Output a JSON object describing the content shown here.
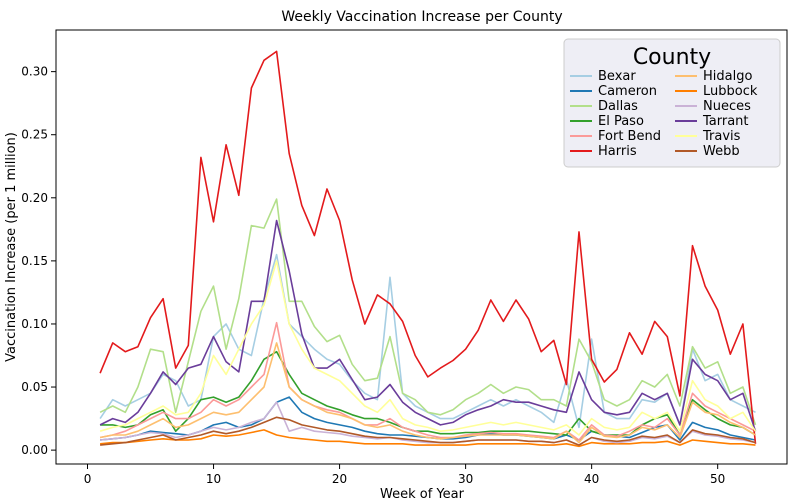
{
  "chart_data": {
    "type": "line",
    "title": "Weekly Vaccination Increase per County",
    "xlabel": "Week of Year",
    "ylabel": "Vaccination Increase (per 1 million)",
    "xlim": [
      -2.5,
      55.5
    ],
    "ylim": [
      -0.011,
      0.333
    ],
    "xticks": [
      0,
      10,
      20,
      30,
      40,
      50
    ],
    "yticks": [
      0.0,
      0.05,
      0.1,
      0.15,
      0.2,
      0.25,
      0.3
    ],
    "xtick_labels": [
      "0",
      "10",
      "20",
      "30",
      "40",
      "50"
    ],
    "ytick_labels": [
      "0.00",
      "0.05",
      "0.10",
      "0.15",
      "0.20",
      "0.25",
      "0.30"
    ],
    "grid": false,
    "legend": {
      "title": "County",
      "placement": "top-right",
      "columns": 2
    },
    "x": [
      1,
      2,
      3,
      4,
      5,
      6,
      7,
      8,
      9,
      10,
      11,
      12,
      13,
      14,
      15,
      16,
      17,
      18,
      19,
      20,
      21,
      22,
      23,
      24,
      25,
      26,
      27,
      28,
      29,
      30,
      31,
      32,
      33,
      34,
      35,
      36,
      37,
      38,
      39,
      40,
      41,
      42,
      43,
      44,
      45,
      46,
      47,
      48,
      49,
      50,
      51,
      52,
      53
    ],
    "series": [
      {
        "name": "Bexar",
        "color": "#a6cee3",
        "values": [
          0.025,
          0.04,
          0.035,
          0.04,
          0.045,
          0.06,
          0.055,
          0.035,
          0.04,
          0.09,
          0.1,
          0.08,
          0.075,
          0.12,
          0.155,
          0.1,
          0.09,
          0.08,
          0.072,
          0.068,
          0.055,
          0.045,
          0.04,
          0.137,
          0.045,
          0.035,
          0.03,
          0.025,
          0.025,
          0.03,
          0.035,
          0.04,
          0.035,
          0.04,
          0.035,
          0.03,
          0.022,
          0.056,
          0.018,
          0.088,
          0.03,
          0.025,
          0.025,
          0.04,
          0.038,
          0.045,
          0.02,
          0.08,
          0.055,
          0.06,
          0.04,
          0.035,
          0.03
        ]
      },
      {
        "name": "Cameron",
        "color": "#1f78b4",
        "values": [
          0.008,
          0.009,
          0.01,
          0.012,
          0.015,
          0.014,
          0.013,
          0.012,
          0.015,
          0.02,
          0.022,
          0.018,
          0.02,
          0.025,
          0.038,
          0.042,
          0.03,
          0.025,
          0.022,
          0.02,
          0.018,
          0.015,
          0.013,
          0.012,
          0.012,
          0.011,
          0.01,
          0.009,
          0.009,
          0.01,
          0.012,
          0.013,
          0.012,
          0.012,
          0.011,
          0.01,
          0.009,
          0.012,
          0.008,
          0.015,
          0.012,
          0.011,
          0.01,
          0.014,
          0.018,
          0.02,
          0.008,
          0.022,
          0.018,
          0.016,
          0.012,
          0.01,
          0.008
        ]
      },
      {
        "name": "Dallas",
        "color": "#b2df8a",
        "values": [
          0.03,
          0.035,
          0.03,
          0.05,
          0.08,
          0.078,
          0.03,
          0.07,
          0.11,
          0.13,
          0.08,
          0.12,
          0.178,
          0.176,
          0.199,
          0.118,
          0.118,
          0.098,
          0.086,
          0.091,
          0.068,
          0.055,
          0.057,
          0.09,
          0.045,
          0.04,
          0.03,
          0.028,
          0.032,
          0.04,
          0.045,
          0.052,
          0.045,
          0.05,
          0.048,
          0.04,
          0.04,
          0.035,
          0.088,
          0.07,
          0.04,
          0.035,
          0.04,
          0.055,
          0.05,
          0.06,
          0.035,
          0.082,
          0.065,
          0.07,
          0.045,
          0.05,
          0.02
        ]
      },
      {
        "name": "El Paso",
        "color": "#33a02c",
        "values": [
          0.02,
          0.02,
          0.018,
          0.02,
          0.028,
          0.032,
          0.015,
          0.025,
          0.04,
          0.042,
          0.038,
          0.042,
          0.055,
          0.072,
          0.078,
          0.06,
          0.045,
          0.04,
          0.035,
          0.032,
          0.028,
          0.025,
          0.025,
          0.022,
          0.018,
          0.015,
          0.015,
          0.013,
          0.013,
          0.014,
          0.014,
          0.015,
          0.015,
          0.015,
          0.015,
          0.014,
          0.013,
          0.012,
          0.025,
          0.015,
          0.012,
          0.012,
          0.012,
          0.02,
          0.025,
          0.028,
          0.012,
          0.04,
          0.032,
          0.025,
          0.02,
          0.018,
          0.012
        ]
      },
      {
        "name": "Fort Bend",
        "color": "#fb9a99",
        "values": [
          0.01,
          0.012,
          0.015,
          0.02,
          0.025,
          0.03,
          0.025,
          0.025,
          0.03,
          0.04,
          0.035,
          0.04,
          0.05,
          0.06,
          0.101,
          0.05,
          0.04,
          0.035,
          0.032,
          0.03,
          0.025,
          0.02,
          0.02,
          0.025,
          0.018,
          0.015,
          0.012,
          0.01,
          0.01,
          0.012,
          0.013,
          0.014,
          0.013,
          0.013,
          0.012,
          0.011,
          0.01,
          0.015,
          0.008,
          0.02,
          0.012,
          0.011,
          0.015,
          0.02,
          0.018,
          0.025,
          0.012,
          0.045,
          0.035,
          0.03,
          0.025,
          0.02,
          0.015
        ]
      },
      {
        "name": "Harris",
        "color": "#e31a1c",
        "values": [
          0.061,
          0.085,
          0.078,
          0.082,
          0.105,
          0.12,
          0.065,
          0.083,
          0.232,
          0.181,
          0.242,
          0.202,
          0.287,
          0.309,
          0.316,
          0.235,
          0.194,
          0.17,
          0.207,
          0.182,
          0.135,
          0.1,
          0.123,
          0.116,
          0.102,
          0.075,
          0.058,
          0.065,
          0.071,
          0.08,
          0.095,
          0.119,
          0.102,
          0.119,
          0.104,
          0.078,
          0.087,
          0.052,
          0.173,
          0.072,
          0.054,
          0.064,
          0.093,
          0.076,
          0.102,
          0.09,
          0.043,
          0.162,
          0.13,
          0.111,
          0.076,
          0.1,
          0.005
        ]
      },
      {
        "name": "Hidalgo",
        "color": "#fdbf6f",
        "values": [
          0.01,
          0.012,
          0.012,
          0.015,
          0.02,
          0.025,
          0.018,
          0.02,
          0.025,
          0.03,
          0.028,
          0.03,
          0.04,
          0.05,
          0.085,
          0.05,
          0.04,
          0.035,
          0.03,
          0.028,
          0.025,
          0.02,
          0.018,
          0.02,
          0.015,
          0.012,
          0.01,
          0.009,
          0.01,
          0.011,
          0.012,
          0.012,
          0.012,
          0.012,
          0.011,
          0.01,
          0.009,
          0.015,
          0.006,
          0.018,
          0.011,
          0.01,
          0.012,
          0.018,
          0.016,
          0.02,
          0.01,
          0.038,
          0.03,
          0.028,
          0.022,
          0.018,
          0.012
        ]
      },
      {
        "name": "Lubbock",
        "color": "#ff7f00",
        "values": [
          0.005,
          0.006,
          0.006,
          0.007,
          0.008,
          0.009,
          0.008,
          0.008,
          0.009,
          0.012,
          0.011,
          0.012,
          0.014,
          0.016,
          0.012,
          0.01,
          0.009,
          0.008,
          0.007,
          0.007,
          0.006,
          0.005,
          0.005,
          0.005,
          0.005,
          0.004,
          0.004,
          0.004,
          0.004,
          0.004,
          0.005,
          0.005,
          0.005,
          0.005,
          0.005,
          0.004,
          0.004,
          0.005,
          0.003,
          0.006,
          0.005,
          0.005,
          0.005,
          0.006,
          0.006,
          0.007,
          0.004,
          0.008,
          0.007,
          0.006,
          0.005,
          0.005,
          0.004
        ]
      },
      {
        "name": "Nueces",
        "color": "#cab2d6",
        "values": [
          0.008,
          0.009,
          0.01,
          0.012,
          0.014,
          0.013,
          0.01,
          0.012,
          0.015,
          0.018,
          0.016,
          0.018,
          0.022,
          0.025,
          0.038,
          0.015,
          0.018,
          0.015,
          0.014,
          0.013,
          0.011,
          0.01,
          0.009,
          0.01,
          0.008,
          0.007,
          0.006,
          0.006,
          0.006,
          0.007,
          0.008,
          0.008,
          0.008,
          0.008,
          0.007,
          0.007,
          0.006,
          0.008,
          0.004,
          0.01,
          0.007,
          0.006,
          0.007,
          0.01,
          0.009,
          0.011,
          0.006,
          0.015,
          0.012,
          0.011,
          0.009,
          0.008,
          0.006
        ]
      },
      {
        "name": "Tarrant",
        "color": "#6a3d9a",
        "values": [
          0.02,
          0.025,
          0.022,
          0.03,
          0.045,
          0.062,
          0.052,
          0.065,
          0.068,
          0.09,
          0.07,
          0.062,
          0.118,
          0.118,
          0.182,
          0.142,
          0.092,
          0.065,
          0.065,
          0.072,
          0.056,
          0.04,
          0.042,
          0.052,
          0.038,
          0.03,
          0.025,
          0.02,
          0.022,
          0.028,
          0.032,
          0.035,
          0.04,
          0.038,
          0.038,
          0.035,
          0.032,
          0.03,
          0.062,
          0.04,
          0.03,
          0.028,
          0.03,
          0.045,
          0.04,
          0.045,
          0.02,
          0.072,
          0.06,
          0.055,
          0.04,
          0.045,
          0.015
        ]
      },
      {
        "name": "Travis",
        "color": "#ffff99",
        "values": [
          0.015,
          0.018,
          0.02,
          0.025,
          0.03,
          0.035,
          0.028,
          0.03,
          0.045,
          0.075,
          0.06,
          0.08,
          0.1,
          0.115,
          0.15,
          0.1,
          0.08,
          0.065,
          0.06,
          0.055,
          0.045,
          0.035,
          0.03,
          0.04,
          0.025,
          0.02,
          0.018,
          0.015,
          0.016,
          0.018,
          0.02,
          0.022,
          0.02,
          0.022,
          0.02,
          0.018,
          0.016,
          0.02,
          0.012,
          0.025,
          0.018,
          0.016,
          0.018,
          0.03,
          0.025,
          0.03,
          0.015,
          0.055,
          0.04,
          0.035,
          0.025,
          0.03,
          0.015
        ]
      },
      {
        "name": "Webb",
        "color": "#b15928",
        "values": [
          0.004,
          0.005,
          0.006,
          0.008,
          0.01,
          0.012,
          0.008,
          0.01,
          0.012,
          0.015,
          0.013,
          0.015,
          0.018,
          0.022,
          0.026,
          0.024,
          0.02,
          0.018,
          0.016,
          0.015,
          0.013,
          0.011,
          0.01,
          0.01,
          0.009,
          0.008,
          0.007,
          0.006,
          0.006,
          0.007,
          0.008,
          0.008,
          0.008,
          0.008,
          0.007,
          0.007,
          0.006,
          0.008,
          0.004,
          0.01,
          0.008,
          0.007,
          0.008,
          0.011,
          0.01,
          0.012,
          0.006,
          0.016,
          0.013,
          0.012,
          0.01,
          0.009,
          0.006
        ]
      }
    ]
  }
}
